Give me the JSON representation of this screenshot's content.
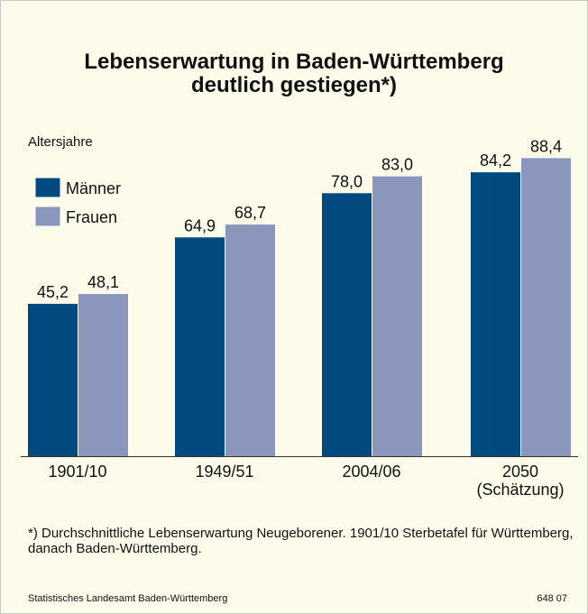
{
  "chart_data": {
    "type": "bar",
    "title": "Lebenserwartung in Baden-Württemberg\ndeutlich gestiegen*)",
    "ylabel": "Altersjahre",
    "categories": [
      "1901/10",
      "1949/51",
      "2004/06",
      "2050\n(Schätzung)"
    ],
    "series": [
      {
        "name": "Männer",
        "color": "#004a80",
        "values": [
          45.2,
          64.9,
          78.0,
          84.2
        ],
        "value_labels": [
          "45,2",
          "64,9",
          "78,0",
          "84,2"
        ]
      },
      {
        "name": "Frauen",
        "color": "#8a96bb",
        "values": [
          48.1,
          68.7,
          83.0,
          88.4
        ],
        "value_labels": [
          "48,1",
          "68,7",
          "83,0",
          "88,4"
        ]
      }
    ],
    "footnote": "*) Durchschnittliche Lebenserwartung Neugeborener. 1901/10 Sterbetafel für Württemberg, danach Baden-Württemberg.",
    "source": "Statistisches Landesamt Baden-Württemberg",
    "code": "648 07"
  }
}
